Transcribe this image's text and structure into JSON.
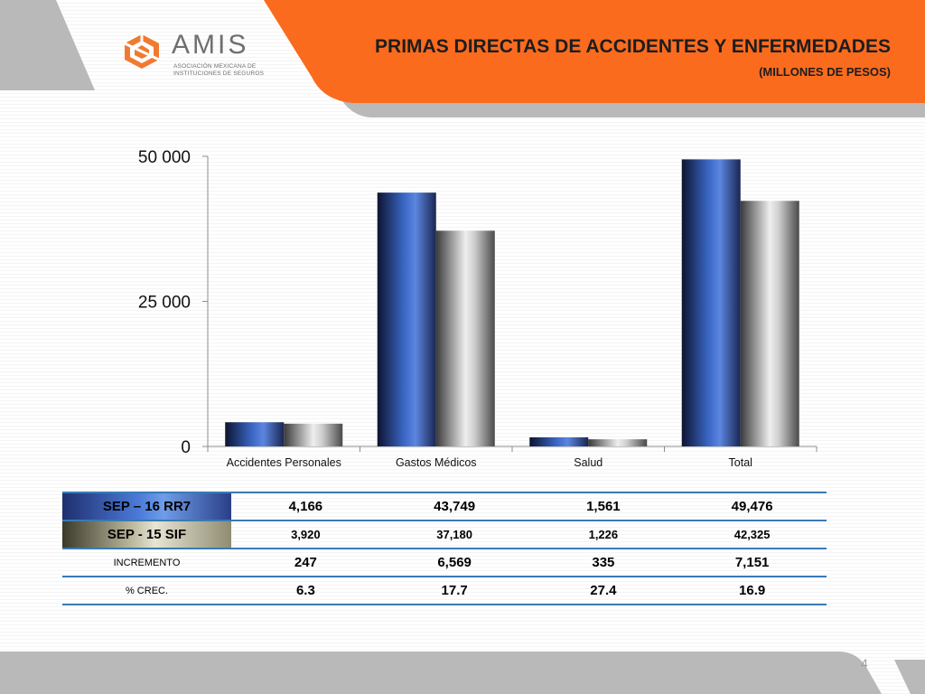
{
  "header": {
    "logo_name": "AMIS",
    "logo_sub_line1": "ASOCIACIÓN MEXICANA DE",
    "logo_sub_line2": "INSTITUCIONES DE SEGUROS",
    "title": "PRIMAS DIRECTAS DE ACCIDENTES Y ENFERMEDADES",
    "subtitle": "(MILLONES DE PESOS)",
    "accent_color": "#fa6b1e",
    "gray_color": "#b9b9b9"
  },
  "chart_data": {
    "type": "bar",
    "categories": [
      "Accidentes Personales",
      "Gastos Médicos",
      "Salud",
      "Total"
    ],
    "series": [
      {
        "name": "SEP – 16 RR7",
        "values": [
          4166,
          43749,
          1561,
          49476
        ],
        "color": "#3a66c4"
      },
      {
        "name": "SEP -  15 SIF",
        "values": [
          3920,
          37180,
          1226,
          42325
        ],
        "color": "#9a9a9a"
      }
    ],
    "ylim": [
      0,
      50000
    ],
    "yticks": [
      0,
      25000,
      50000
    ],
    "ytick_labels": [
      "0",
      "25 000",
      "50 000"
    ],
    "grid": false,
    "legend": "none"
  },
  "table": {
    "rows": [
      {
        "label": "SEP – 16 RR7",
        "values": [
          "4,166",
          "43,749",
          "1,561",
          "49,476"
        ]
      },
      {
        "label": "SEP -  15 SIF",
        "values": [
          "3,920",
          "37,180",
          "1,226",
          "42,325"
        ]
      },
      {
        "label": "INCREMENTO",
        "values": [
          "247",
          "6,569",
          "335",
          "7,151"
        ]
      },
      {
        "label": "% CREC.",
        "values": [
          "6.3",
          "17.7",
          "27.4",
          "16.9"
        ]
      }
    ]
  },
  "footer": {
    "page_number": "4"
  }
}
